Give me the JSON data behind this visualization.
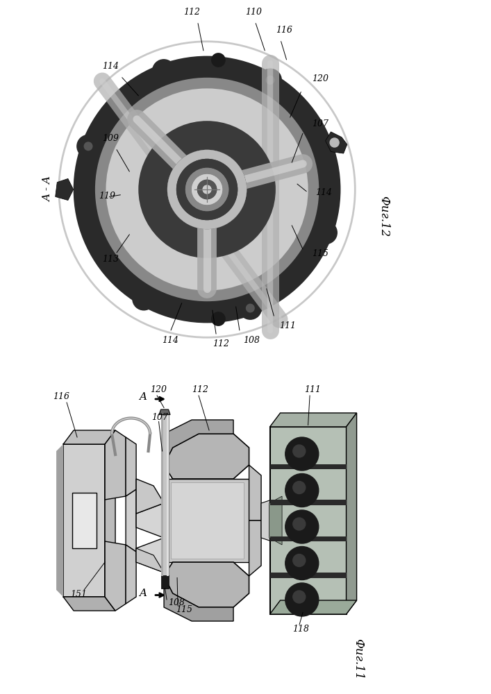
{
  "fig_labels": {
    "fig11": "Фиг.11",
    "fig12": "Фиг.12"
  },
  "section_label": "A - A",
  "bg_color": "#ffffff",
  "dark_color": "#1a1a1a",
  "gray1": "#333333",
  "gray2": "#666666",
  "gray3": "#999999",
  "gray4": "#bbbbbb",
  "gray5": "#d8d8d8",
  "light_gray_circle": "#c0c0c0",
  "spoke_gray": "#aaaaaa",
  "green_body": "#b0bdb0",
  "rod_color": "#c0c0c0"
}
